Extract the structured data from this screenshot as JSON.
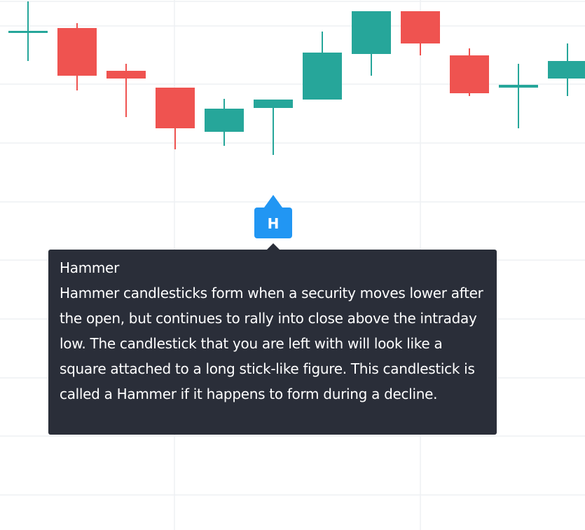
{
  "chart_data": {
    "type": "candlestick",
    "open": [
      710,
      716,
      655,
      631,
      568,
      602,
      614,
      679,
      740,
      677,
      631,
      644
    ],
    "high": [
      754,
      723,
      665,
      631,
      615,
      614,
      711,
      740,
      740,
      687,
      665,
      694
    ],
    "low": [
      669,
      627,
      589,
      543,
      548,
      535,
      614,
      648,
      677,
      619,
      573,
      619
    ],
    "close": [
      712,
      648,
      644,
      573,
      601,
      614,
      681,
      740,
      694,
      623,
      635,
      669
    ],
    "up_color": "#26a69a",
    "down_color": "#ef5350",
    "ylim": [
      0,
      756
    ]
  },
  "marker": {
    "label": "H",
    "color": "#2196f3"
  },
  "tooltip": {
    "title": "Hammer",
    "text": "Hammer candlesticks form when a security moves lower after the open, but continues to rally into close above the intraday low. The candlestick that you are left with will look like a square attached to a long stick-like figure. This candlestick is called a Hammer if it happens to form during a decline."
  }
}
